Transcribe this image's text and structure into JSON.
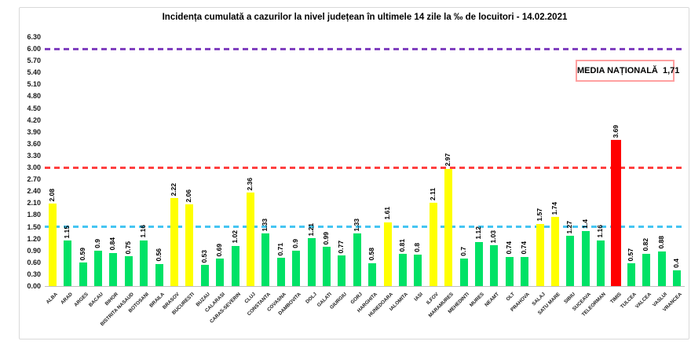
{
  "chart_data": {
    "type": "bar",
    "title": "Incidența cumulată a cazurilor la nivel județean în ultimele 14 zile la ‰ de locuitori - 14.02.2021",
    "xlabel": "",
    "ylabel": "",
    "ylim": [
      0,
      6.3
    ],
    "ytick_step": 0.3,
    "yticks": [
      "0.00",
      "0.30",
      "0.60",
      "0.90",
      "1.20",
      "1.50",
      "1.80",
      "2.10",
      "2.40",
      "2.70",
      "3.00",
      "3.30",
      "3.60",
      "3.90",
      "4.20",
      "4.50",
      "4.80",
      "5.10",
      "5.40",
      "5.70",
      "6.00",
      "6.30"
    ],
    "grid": false,
    "legend": "none",
    "categories": [
      "ALBA",
      "ARAD",
      "ARGES",
      "BACAU",
      "BIHOR",
      "BISTRITA NASAUD",
      "BOTOSANI",
      "BRAILA",
      "BRASOV",
      "BUCURESTI",
      "BUZAU",
      "CALARASI",
      "CARAS-SEVERIN",
      "CLUJ",
      "CONSTANTA",
      "COVASNA",
      "DAMBOVITA",
      "DOLJ",
      "GALATI",
      "GIURGIU",
      "GORJ",
      "HARGHITA",
      "HUNEDOARA",
      "IALOMITA",
      "IASI",
      "ILFOV",
      "MARAMURES",
      "MEHEDINTI",
      "MURES",
      "NEAMT",
      "OLT",
      "PRAHOVA",
      "SALAJ",
      "SATU MARE",
      "SIBIU",
      "SUCEAVA",
      "TELEORMAN",
      "TIMIS",
      "TULCEA",
      "VALCEA",
      "VASLUI",
      "VRANCEA"
    ],
    "values": [
      2.08,
      1.15,
      0.59,
      0.9,
      0.84,
      0.75,
      1.16,
      0.56,
      2.22,
      2.06,
      0.53,
      0.69,
      1.02,
      2.36,
      1.33,
      0.71,
      0.9,
      1.21,
      0.99,
      0.77,
      1.33,
      0.58,
      1.61,
      0.81,
      0.8,
      2.11,
      2.97,
      0.7,
      1.12,
      1.03,
      0.74,
      0.74,
      1.57,
      1.74,
      1.27,
      1.4,
      1.16,
      3.69,
      0.57,
      0.82,
      0.88,
      0.4
    ],
    "bar_colors": [
      "yellow",
      "green",
      "green",
      "green",
      "green",
      "green",
      "green",
      "green",
      "yellow",
      "yellow",
      "green",
      "green",
      "green",
      "yellow",
      "green",
      "green",
      "green",
      "green",
      "green",
      "green",
      "green",
      "green",
      "yellow",
      "green",
      "green",
      "yellow",
      "yellow",
      "green",
      "green",
      "green",
      "green",
      "green",
      "yellow",
      "yellow",
      "green",
      "green",
      "green",
      "red",
      "green",
      "green",
      "green",
      "green"
    ],
    "palette": {
      "green": "#00e266",
      "yellow": "#ffff00",
      "red": "#ff0000"
    },
    "thresholds": [
      {
        "value": 6.0,
        "color": "#8040bf",
        "name": "purple-dashed-line"
      },
      {
        "value": 3.0,
        "color": "#ff4040",
        "name": "red-dashed-line"
      },
      {
        "value": 1.5,
        "color": "#45c5f2",
        "name": "cyan-dashed-line"
      }
    ],
    "annotation": {
      "text": "MEDIA NAȚIONALĂ  1,71",
      "border_color": "#ffa0a0"
    }
  }
}
